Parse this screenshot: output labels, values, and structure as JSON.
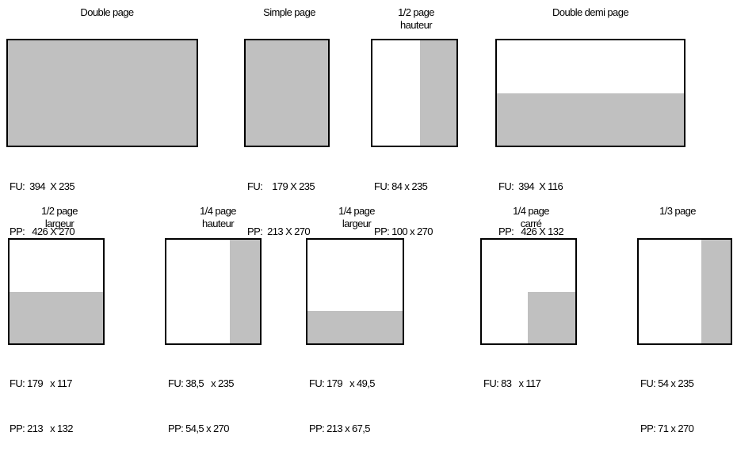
{
  "formats": [
    {
      "id": "double-page",
      "title_lines": [
        "Double page"
      ],
      "fu": "FU:  394  X 235",
      "pp": "PP:   426 X 270"
    },
    {
      "id": "simple-page",
      "title_lines": [
        "Simple page"
      ],
      "fu": "FU:    179 X 235",
      "pp": "PP:  213 X 270"
    },
    {
      "id": "half-page-height",
      "title_lines": [
        "1/2 page",
        "hauteur"
      ],
      "fu": "FU: 84 x 235",
      "pp": "PP: 100 x 270"
    },
    {
      "id": "double-half-page",
      "title_lines": [
        "Double demi page"
      ],
      "fu": "FU:  394  X 116",
      "pp": "PP:   426 X 132"
    },
    {
      "id": "half-page-width",
      "title_lines": [
        "1/2 page",
        "largeur"
      ],
      "fu": "FU: 179   x 117",
      "pp": "PP: 213   x 132"
    },
    {
      "id": "quarter-page-height",
      "title_lines": [
        "1/4 page",
        "hauteur"
      ],
      "fu": "FU: 38,5   x 235",
      "pp": "PP: 54,5 x 270"
    },
    {
      "id": "quarter-page-width",
      "title_lines": [
        "1/4 page",
        "largeur"
      ],
      "fu": "FU: 179   x 49,5",
      "pp": "PP: 213 x 67,5"
    },
    {
      "id": "quarter-page-square",
      "title_lines": [
        "1/4 page",
        "carré"
      ],
      "fu": "FU: 83   x 117",
      "pp": ""
    },
    {
      "id": "third-page",
      "title_lines": [
        "1/3 page"
      ],
      "fu": "FU: 54 x 235",
      "pp": "PP: 71 x 270"
    }
  ]
}
